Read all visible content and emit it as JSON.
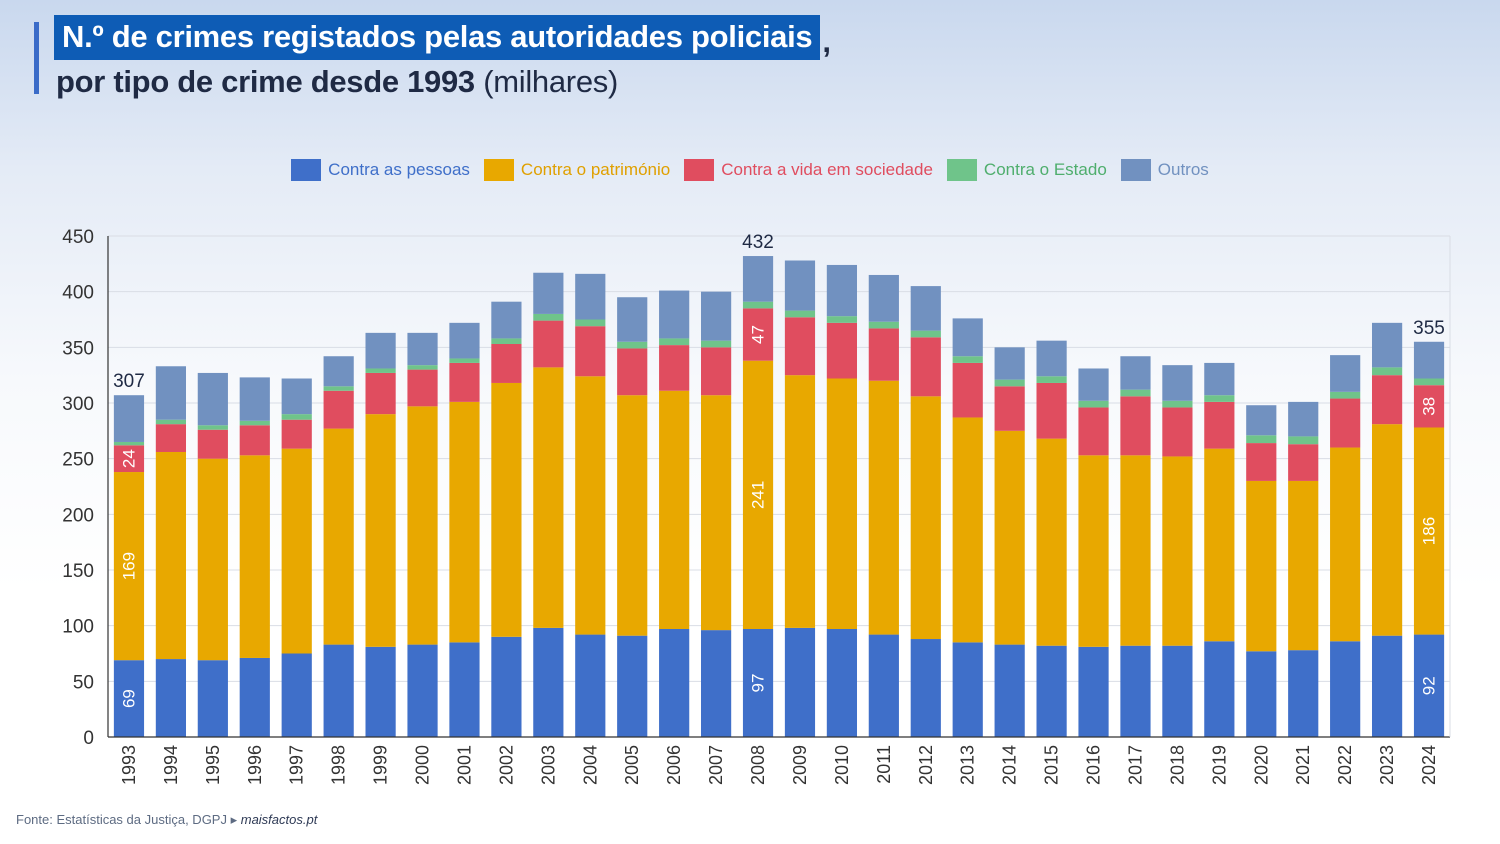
{
  "title": {
    "highlight": "N.º de crimes registados pelas autoridades policiais",
    "comma": ",",
    "line2_bold": "por tipo de crime desde 1993",
    "line2_rest": "(milhares)"
  },
  "source": {
    "text": "Fonte: Estatísticas da Justiça, DGPJ ▸",
    "site": "maisfactos.pt"
  },
  "colors": {
    "pessoas": "#3f6fc9",
    "patrimonio": "#e8a800",
    "sociedade": "#e04d5f",
    "estado": "#6fc48a",
    "outros": "#7191c0",
    "axis": "#333333",
    "grid": "#d9dde5"
  },
  "chart_data": {
    "type": "bar",
    "stacked": true,
    "categories": [
      "1993",
      "1994",
      "1995",
      "1996",
      "1997",
      "1998",
      "1999",
      "2000",
      "2001",
      "2002",
      "2003",
      "2004",
      "2005",
      "2006",
      "2007",
      "2008",
      "2009",
      "2010",
      "2011",
      "2012",
      "2013",
      "2014",
      "2015",
      "2016",
      "2017",
      "2018",
      "2019",
      "2020",
      "2021",
      "2022",
      "2023",
      "2024"
    ],
    "series": [
      {
        "name": "Contra as pessoas",
        "key": "pessoas",
        "values": [
          69,
          70,
          69,
          71,
          75,
          83,
          81,
          83,
          85,
          90,
          98,
          92,
          91,
          97,
          96,
          97,
          98,
          97,
          92,
          88,
          85,
          83,
          82,
          81,
          82,
          82,
          86,
          77,
          78,
          86,
          91,
          92
        ]
      },
      {
        "name": "Contra o património",
        "key": "patrimonio",
        "values": [
          169,
          186,
          181,
          182,
          184,
          194,
          209,
          214,
          216,
          228,
          234,
          232,
          216,
          214,
          211,
          241,
          227,
          225,
          228,
          218,
          202,
          192,
          186,
          172,
          171,
          170,
          173,
          153,
          152,
          174,
          190,
          186
        ]
      },
      {
        "name": "Contra a vida em sociedade",
        "key": "sociedade",
        "values": [
          24,
          25,
          26,
          27,
          26,
          34,
          37,
          33,
          35,
          35,
          42,
          45,
          42,
          41,
          43,
          47,
          52,
          50,
          47,
          53,
          49,
          40,
          50,
          43,
          53,
          44,
          42,
          34,
          33,
          44,
          44,
          38
        ]
      },
      {
        "name": "Contra o Estado",
        "key": "estado",
        "values": [
          3,
          4,
          4,
          4,
          5,
          4,
          4,
          4,
          4,
          5,
          6,
          6,
          6,
          6,
          6,
          6,
          6,
          6,
          6,
          6,
          6,
          6,
          6,
          6,
          6,
          6,
          6,
          7,
          7,
          6,
          7,
          6
        ]
      },
      {
        "name": "Outros",
        "key": "outros",
        "values": [
          42,
          48,
          47,
          39,
          32,
          27,
          32,
          29,
          32,
          33,
          37,
          41,
          40,
          43,
          44,
          41,
          45,
          46,
          42,
          40,
          34,
          29,
          32,
          29,
          30,
          32,
          29,
          27,
          31,
          33,
          40,
          33
        ]
      }
    ],
    "totals_labels": {
      "1993": "307",
      "2008": "432",
      "2024": "355"
    },
    "segment_labels": [
      {
        "year": "1993",
        "series": "pessoas",
        "text": "69"
      },
      {
        "year": "1993",
        "series": "patrimonio",
        "text": "169"
      },
      {
        "year": "1993",
        "series": "sociedade",
        "text": "24"
      },
      {
        "year": "2008",
        "series": "pessoas",
        "text": "97"
      },
      {
        "year": "2008",
        "series": "patrimonio",
        "text": "241"
      },
      {
        "year": "2008",
        "series": "sociedade",
        "text": "47"
      },
      {
        "year": "2024",
        "series": "pessoas",
        "text": "92"
      },
      {
        "year": "2024",
        "series": "patrimonio",
        "text": "186"
      },
      {
        "year": "2024",
        "series": "sociedade",
        "text": "38"
      }
    ],
    "ylim": [
      0,
      450
    ],
    "yticks": [
      0,
      50,
      100,
      150,
      200,
      250,
      300,
      350,
      400,
      450
    ],
    "grid": true,
    "legend_position": "top-center"
  }
}
